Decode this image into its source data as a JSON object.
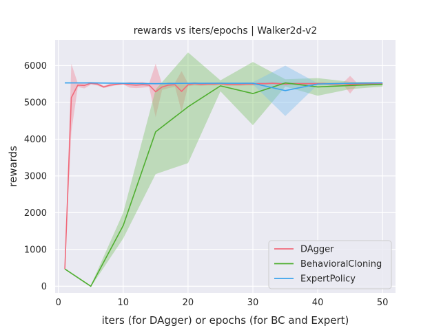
{
  "chart_data": {
    "type": "line",
    "title": "rewards vs iters/epochs | Walker2d-v2",
    "xlabel": "iters (for DAgger) or epochs (for BC and Expert)",
    "ylabel": "rewards",
    "xlim": [
      -0.5,
      52
    ],
    "ylim": [
      -180,
      6700
    ],
    "xticks": [
      0,
      10,
      20,
      30,
      40,
      50
    ],
    "yticks": [
      0,
      1000,
      2000,
      3000,
      4000,
      5000,
      6000
    ],
    "grid": true,
    "legend_position": "lower-right",
    "series": [
      {
        "name": "DAgger",
        "color": "#f0697a",
        "band_color": "#f28597",
        "x": [
          1,
          2,
          3,
          4,
          5,
          6,
          7,
          8,
          9,
          10,
          11,
          12,
          13,
          14,
          15,
          16,
          17,
          18,
          19,
          20,
          21,
          22,
          23,
          24,
          25,
          26,
          27,
          28,
          29,
          30,
          31,
          32,
          33,
          34,
          35,
          36,
          37,
          38,
          39,
          40,
          41,
          42,
          43,
          44,
          45,
          46,
          47,
          48,
          49,
          50
        ],
        "values": [
          470,
          5130,
          5470,
          5460,
          5520,
          5500,
          5420,
          5470,
          5490,
          5510,
          5480,
          5470,
          5480,
          5470,
          5290,
          5420,
          5470,
          5480,
          5300,
          5480,
          5510,
          5490,
          5500,
          5500,
          5510,
          5490,
          5490,
          5490,
          5500,
          5500,
          5510,
          5510,
          5520,
          5510,
          5500,
          5510,
          5510,
          5510,
          5510,
          5510,
          5510,
          5500,
          5500,
          5510,
          5490,
          5500,
          5510,
          5510,
          5510,
          5510
        ],
        "lower": [
          450,
          4200,
          5420,
          5380,
          5480,
          5460,
          5390,
          5430,
          5470,
          5490,
          5400,
          5390,
          5400,
          5420,
          4600,
          5340,
          5390,
          5420,
          4750,
          5440,
          5460,
          5450,
          5460,
          5460,
          5470,
          5450,
          5450,
          5450,
          5460,
          5460,
          5470,
          5470,
          5480,
          5470,
          5460,
          5470,
          5470,
          5470,
          5470,
          5470,
          5470,
          5460,
          5460,
          5470,
          5240,
          5460,
          5470,
          5470,
          5470,
          5470
        ],
        "upper": [
          490,
          6050,
          5520,
          5540,
          5560,
          5540,
          5450,
          5510,
          5510,
          5530,
          5560,
          5550,
          5560,
          5520,
          6050,
          5500,
          5550,
          5540,
          5850,
          5520,
          5560,
          5530,
          5540,
          5540,
          5550,
          5530,
          5530,
          5530,
          5540,
          5540,
          5550,
          5550,
          5560,
          5550,
          5540,
          5550,
          5550,
          5550,
          5550,
          5550,
          5550,
          5540,
          5540,
          5550,
          5720,
          5540,
          5550,
          5550,
          5550,
          5550
        ]
      },
      {
        "name": "BehavioralCloning",
        "color": "#4fae30",
        "band_color": "#7cc267",
        "x": [
          1,
          5,
          10,
          15,
          20,
          25,
          30,
          35,
          40,
          45,
          50
        ],
        "values": [
          470,
          0,
          1650,
          4200,
          4880,
          5450,
          5240,
          5530,
          5420,
          5460,
          5490
        ],
        "lower": [
          450,
          -20,
          1300,
          3050,
          3350,
          5300,
          4380,
          5430,
          5180,
          5360,
          5430
        ],
        "upper": [
          490,
          20,
          2000,
          5350,
          6360,
          5600,
          6100,
          5630,
          5660,
          5560,
          5550
        ]
      },
      {
        "name": "ExpertPolicy",
        "color": "#3ba3ec",
        "band_color": "#7bbdee",
        "x": [
          1,
          5,
          10,
          15,
          20,
          25,
          30,
          35,
          40,
          45,
          50
        ],
        "values": [
          5530,
          5530,
          5520,
          5510,
          5520,
          5520,
          5520,
          5320,
          5500,
          5520,
          5530
        ],
        "lower": [
          5510,
          5510,
          5500,
          5490,
          5500,
          5500,
          5490,
          4630,
          5480,
          5500,
          5510
        ],
        "upper": [
          5550,
          5550,
          5540,
          5530,
          5540,
          5540,
          5550,
          6000,
          5520,
          5540,
          5550
        ]
      }
    ]
  }
}
